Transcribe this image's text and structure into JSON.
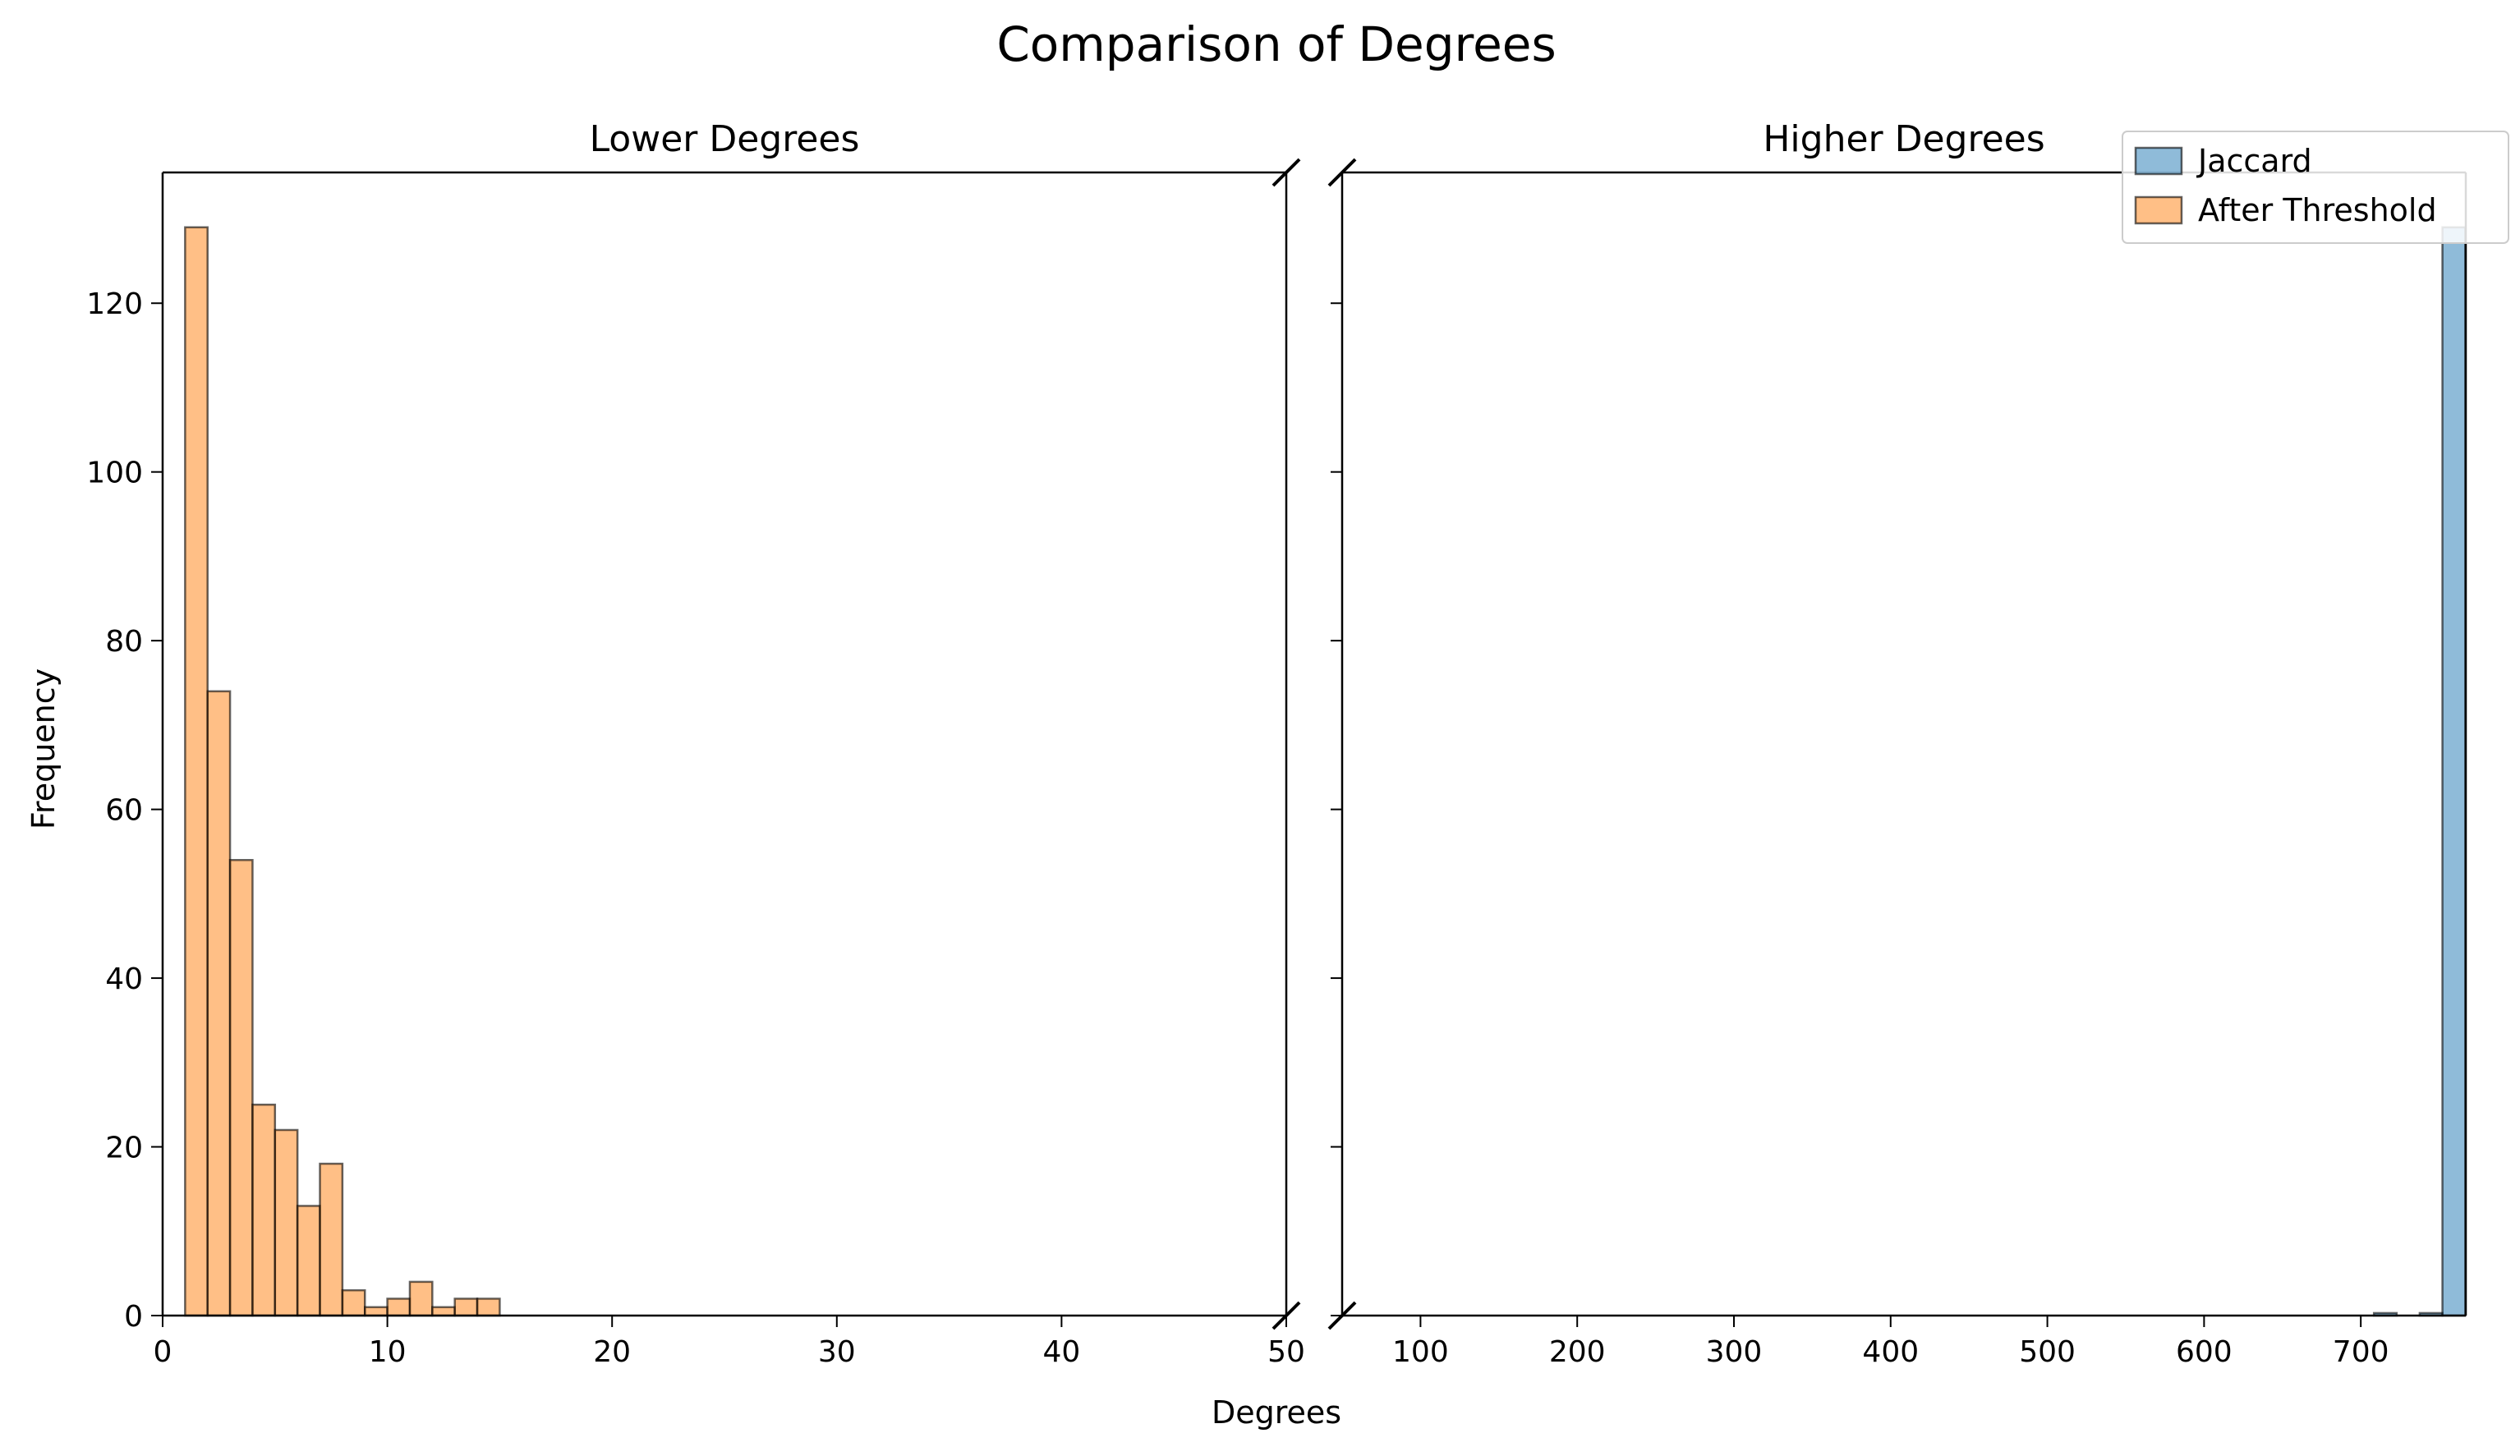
{
  "chart_data": {
    "title": "Comparison of Degrees",
    "xlabel": "Degrees",
    "ylabel": "Frequency",
    "type": "bar",
    "colors": {
      "jaccard": "#1f77b4",
      "after_threshold": "#ff7f0e",
      "edge": "#000000"
    },
    "legend": {
      "placement": "top-right",
      "entries": [
        "Jaccard",
        "After Threshold"
      ]
    },
    "panels": [
      {
        "title": "Lower Degrees",
        "xlim": [
          0,
          50
        ],
        "ylim": [
          0,
          135.5
        ],
        "xticks": [
          "0",
          "10",
          "20",
          "30",
          "40",
          "50"
        ],
        "yticks": [
          "0",
          "20",
          "40",
          "60",
          "80",
          "100",
          "120"
        ],
        "series": [
          {
            "name": "After Threshold",
            "bin_width": 1,
            "bins": [
              {
                "x": 1,
                "count": 129
              },
              {
                "x": 2,
                "count": 74
              },
              {
                "x": 3,
                "count": 54
              },
              {
                "x": 4,
                "count": 25
              },
              {
                "x": 5,
                "count": 22
              },
              {
                "x": 6,
                "count": 13
              },
              {
                "x": 7,
                "count": 18
              },
              {
                "x": 8,
                "count": 3
              },
              {
                "x": 9,
                "count": 1
              },
              {
                "x": 10,
                "count": 2
              },
              {
                "x": 11,
                "count": 4
              },
              {
                "x": 12,
                "count": 1
              },
              {
                "x": 13,
                "count": 2
              },
              {
                "x": 14,
                "count": 2
              }
            ]
          }
        ]
      },
      {
        "title": "Higher Degrees",
        "xlim": [
          50,
          767
        ],
        "ylim": [
          0,
          135.5
        ],
        "xticks": [
          "100",
          "200",
          "300",
          "400",
          "500",
          "600",
          "700"
        ],
        "series": [
          {
            "name": "Jaccard",
            "bins": [
              {
                "x0": 708.4,
                "x1": 722.9,
                "count": 0.3
              },
              {
                "x0": 737.6,
                "x1": 752.1,
                "count": 0.3
              },
              {
                "x0": 752.1,
                "x1": 766.7,
                "count": 129
              }
            ]
          }
        ]
      }
    ]
  }
}
